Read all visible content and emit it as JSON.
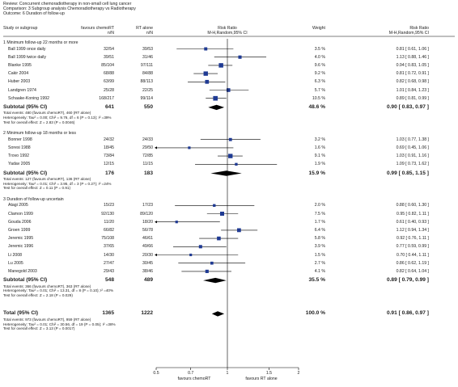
{
  "meta": {
    "review": "Review:  Concurrent chemoradiotherapy in non-small cell lung cancer",
    "comparison": "Comparison:  3 Subgroup analysis Chemoradiotherapy vs Radiotherapy",
    "outcome": "Outcome:  6 Duration of follow-up"
  },
  "header": {
    "study": "Study or subgroup",
    "exp": "favours chemoRT",
    "exp_sub": "n/N",
    "ctl": "RT alone",
    "ctl_sub": "n/N",
    "rr": "Risk Ratio",
    "rr_sub": "M-H,Random,95% CI",
    "weight": "Weight",
    "rr2": "Risk Ratio",
    "rr2_sub": "M-H,Random,95% CI"
  },
  "groups": [
    {
      "title": "1 Minimum follow-up 22 months or more",
      "studies": [
        {
          "name": "Ball 1999 once daily",
          "e": "32/54",
          "c": "39/53",
          "w": "3.5 %",
          "ci": "0.81 [ 0.61, 1.06 ]",
          "rr": 0.81,
          "lo": 0.61,
          "hi": 1.06,
          "wt": 3.5
        },
        {
          "name": "Ball 1999 twice daily",
          "e": "39/51",
          "c": "31/46",
          "w": "4.0 %",
          "ci": "1.13 [ 0.88, 1.46 ]",
          "rr": 1.13,
          "lo": 0.88,
          "hi": 1.46,
          "wt": 4.0
        },
        {
          "name": "Blanke 1995",
          "e": "85/104",
          "c": "97/111",
          "w": "9.6 %",
          "ci": "0.94 [ 0.83, 1.05 ]",
          "rr": 0.94,
          "lo": 0.83,
          "hi": 1.05,
          "wt": 9.6
        },
        {
          "name": "Cakir 2004",
          "e": "68/88",
          "c": "84/88",
          "w": "9.2 %",
          "ci": "0.81 [ 0.72, 0.91 ]",
          "rr": 0.81,
          "lo": 0.72,
          "hi": 0.91,
          "wt": 9.2
        },
        {
          "name": "Huber 2003",
          "e": "63/99",
          "c": "88/113",
          "w": "6.3 %",
          "ci": "0.82 [ 0.68, 0.98 ]",
          "rr": 0.82,
          "lo": 0.68,
          "hi": 0.98,
          "wt": 6.3
        },
        {
          "name": "Landgren 1974",
          "e": "25/28",
          "c": "22/25",
          "w": "5.7 %",
          "ci": "1.01 [ 0.84, 1.23 ]",
          "rr": 1.01,
          "lo": 0.84,
          "hi": 1.23,
          "wt": 5.7
        },
        {
          "name": "Schaake-Koning 1992",
          "e": "168/217",
          "c": "99/114",
          "w": "10.5 %",
          "ci": "0.89 [ 0.81, 0.99 ]",
          "rr": 0.89,
          "lo": 0.81,
          "hi": 0.99,
          "wt": 10.5
        }
      ],
      "subtotal": {
        "label": "Subtotal (95% CI)",
        "e": "641",
        "c": "550",
        "w": "48.6 %",
        "ci": "0.90 [ 0.83, 0.97 ]",
        "rr": 0.9,
        "lo": 0.83,
        "hi": 0.97
      },
      "notes": [
        "Total events: 480 (favours chemoRT), 460 (RT alone)",
        "Heterogeneity: Tau² = 0.00; Chi² = 9.76, df = 6 (P = 0.13); I² =39%",
        "Test for overall effect: Z = 2.83 (P = 0.0046)"
      ]
    },
    {
      "title": "2 Minimum follow-up 18 months or less",
      "studies": [
        {
          "name": "Bonner 1998",
          "e": "24/32",
          "c": "24/33",
          "w": "3.2 %",
          "ci": "1.03 [ 0.77, 1.38 ]",
          "rr": 1.03,
          "lo": 0.77,
          "hi": 1.38,
          "wt": 3.2
        },
        {
          "name": "Soresi 1988",
          "e": "18/45",
          "c": "29/50",
          "w": "1.6 %",
          "ci": "0.69 [ 0.45, 1.06 ]",
          "rr": 0.69,
          "lo": 0.45,
          "hi": 1.06,
          "wt": 1.6
        },
        {
          "name": "Trovo 1992",
          "e": "73/84",
          "c": "72/85",
          "w": "9.1 %",
          "ci": "1.03 [ 0.91, 1.16 ]",
          "rr": 1.03,
          "lo": 0.91,
          "hi": 1.16,
          "wt": 9.1
        },
        {
          "name": "Yadav 2005",
          "e": "12/15",
          "c": "11/15",
          "w": "1.9 %",
          "ci": "1.09 [ 0.73, 1.62 ]",
          "rr": 1.09,
          "lo": 0.73,
          "hi": 1.62,
          "wt": 1.9
        }
      ],
      "subtotal": {
        "label": "Subtotal (95% CI)",
        "e": "176",
        "c": "183",
        "w": "15.9 %",
        "ci": "0.99 [ 0.85, 1.15 ]",
        "rr": 0.99,
        "lo": 0.85,
        "hi": 1.15
      },
      "notes": [
        "Total events: 127 (favours chemoRT), 136 (RT alone)",
        "Heterogeneity: Tau² = 0.01; Chi² = 3.95, df = 3 (P = 0.27); I² =24%",
        "Test for overall effect: Z = 0.11 (P = 0.91)"
      ]
    },
    {
      "title": "3 Duration of follow-up uncertain",
      "studies": [
        {
          "name": "Atagi 2005",
          "e": "15/23",
          "c": "17/23",
          "w": "2.0 %",
          "ci": "0.88 [ 0.60, 1.30 ]",
          "rr": 0.88,
          "lo": 0.6,
          "hi": 1.3,
          "wt": 2.0
        },
        {
          "name": "Clamon 1999",
          "e": "92/130",
          "c": "89/120",
          "w": "7.5 %",
          "ci": "0.95 [ 0.82, 1.11 ]",
          "rr": 0.95,
          "lo": 0.82,
          "hi": 1.11,
          "wt": 7.5
        },
        {
          "name": "Gouda 2006",
          "e": "11/20",
          "c": "18/20",
          "w": "1.7 %",
          "ci": "0.61 [ 0.40, 0.93 ]",
          "rr": 0.61,
          "lo": 0.4,
          "hi": 0.93,
          "wt": 1.7
        },
        {
          "name": "Groen 1999",
          "e": "66/82",
          "c": "56/78",
          "w": "6.4 %",
          "ci": "1.12 [ 0.94, 1.34 ]",
          "rr": 1.12,
          "lo": 0.94,
          "hi": 1.34,
          "wt": 6.4
        },
        {
          "name": "Jeremic 1995",
          "e": "75/108",
          "c": "46/61",
          "w": "5.8 %",
          "ci": "0.92 [ 0.76, 1.11 ]",
          "rr": 0.92,
          "lo": 0.76,
          "hi": 1.11,
          "wt": 5.8
        },
        {
          "name": "Jeremic 1996",
          "e": "37/65",
          "c": "49/66",
          "w": "3.9 %",
          "ci": "0.77 [ 0.59, 0.99 ]",
          "rr": 0.77,
          "lo": 0.59,
          "hi": 0.99,
          "wt": 3.9
        },
        {
          "name": "Li 2008",
          "e": "14/30",
          "c": "20/30",
          "w": "1.5 %",
          "ci": "0.70 [ 0.44, 1.11 ]",
          "rr": 0.7,
          "lo": 0.44,
          "hi": 1.11,
          "wt": 1.5
        },
        {
          "name": "Lu 2005",
          "e": "27/47",
          "c": "30/45",
          "w": "2.7 %",
          "ci": "0.86 [ 0.62, 1.19 ]",
          "rr": 0.86,
          "lo": 0.62,
          "hi": 1.19,
          "wt": 2.7
        },
        {
          "name": "Manegold 2003",
          "e": "29/43",
          "c": "38/46",
          "w": "4.1 %",
          "ci": "0.82 [ 0.64, 1.04 ]",
          "rr": 0.82,
          "lo": 0.64,
          "hi": 1.04,
          "wt": 4.1
        }
      ],
      "subtotal": {
        "label": "Subtotal (95% CI)",
        "e": "548",
        "c": "489",
        "w": "35.5 %",
        "ci": "0.89 [ 0.79, 0.99 ]",
        "rr": 0.89,
        "lo": 0.79,
        "hi": 0.99
      },
      "notes": [
        "Total events: 366 (favours chemoRT), 363 (RT alone)",
        "Heterogeneity: Tau² = 0.01; Chi² = 13.31, df = 8 (P = 0.10); I² =40%",
        "Test for overall effect: Z = 2.18 (P = 0.029)"
      ]
    }
  ],
  "total": {
    "label": "Total (95% CI)",
    "e": "1365",
    "c": "1222",
    "w": "100.0 %",
    "ci": "0.91 [ 0.86, 0.97 ]",
    "rr": 0.91,
    "lo": 0.86,
    "hi": 0.97,
    "notes": [
      "Total events: 973 (favours chemoRT), 959 (RT alone)",
      "Heterogeneity: Tau² = 0.01; Chi² = 30.56, df = 19 (P = 0.05); I² =38%",
      "Test for overall effect: Z = 3.13 (P = 0.0017)"
    ]
  },
  "axis": {
    "ticks": [
      0.5,
      0.7,
      1,
      1.5,
      2
    ],
    "tick_labels": [
      "0.5",
      "0.7",
      "1",
      "1.5",
      "2"
    ],
    "left_label": "favours chemoRT",
    "right_label": "favours RT alone"
  },
  "colors": {
    "marker": "#1f3a93",
    "diamond": "#000000",
    "line": "#000000"
  },
  "chart_data": {
    "type": "scatter",
    "title": "",
    "xlabel": "",
    "ylabel": "",
    "xscale": "log",
    "xlim": [
      0.5,
      2
    ],
    "series": []
  }
}
